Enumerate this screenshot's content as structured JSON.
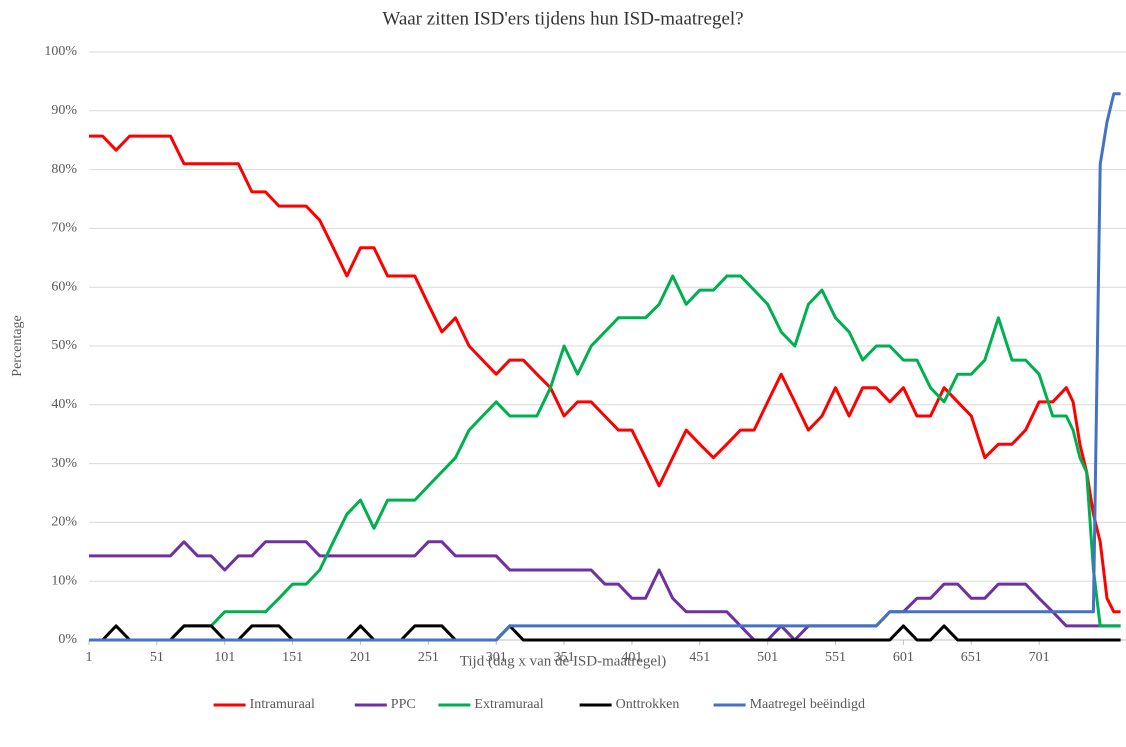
{
  "chart_data": {
    "type": "line",
    "title": "Waar zitten ISD'ers tijdens hun ISD-maatregel?",
    "xlabel": "Tijd (dag x van de ISD-maatregel)",
    "ylabel": "Percentage",
    "x": [
      1,
      11,
      21,
      31,
      41,
      51,
      61,
      71,
      81,
      91,
      101,
      111,
      121,
      131,
      141,
      151,
      161,
      171,
      181,
      191,
      201,
      211,
      221,
      231,
      241,
      251,
      261,
      271,
      281,
      291,
      301,
      311,
      321,
      331,
      341,
      351,
      361,
      371,
      381,
      391,
      401,
      411,
      421,
      431,
      441,
      451,
      461,
      471,
      481,
      491,
      501,
      511,
      521,
      531,
      541,
      551,
      561,
      571,
      581,
      591,
      601,
      611,
      621,
      631,
      641,
      651,
      661,
      671,
      681,
      691,
      701,
      711,
      721,
      726,
      731,
      736,
      741,
      746,
      751,
      756,
      761
    ],
    "series": [
      {
        "name": "Intramuraal",
        "color": "#ff0000",
        "values": [
          85.7,
          85.7,
          83.3,
          85.7,
          85.7,
          85.7,
          85.7,
          81,
          81,
          81,
          81,
          81,
          76.2,
          76.2,
          73.8,
          73.8,
          73.8,
          71.4,
          66.7,
          61.9,
          66.7,
          66.7,
          61.9,
          61.9,
          61.9,
          57.1,
          52.4,
          54.8,
          50,
          47.6,
          45.2,
          47.6,
          47.6,
          45.2,
          42.9,
          38.1,
          40.5,
          40.5,
          38.1,
          35.7,
          35.7,
          31,
          26.2,
          31,
          35.7,
          33.3,
          31,
          33.3,
          35.7,
          35.7,
          40.5,
          45.2,
          40.5,
          35.7,
          38.1,
          42.9,
          38.1,
          42.9,
          42.9,
          40.5,
          42.9,
          38.1,
          38.1,
          42.9,
          40.5,
          38.1,
          31,
          33.3,
          33.3,
          35.7,
          40.5,
          40.5,
          42.9,
          40.5,
          33.3,
          28.6,
          21.4,
          16.7,
          7.1,
          4.8,
          4.8
        ]
      },
      {
        "name": "PPC",
        "color": "#7030a0",
        "values": [
          14.3,
          14.3,
          14.3,
          14.3,
          14.3,
          14.3,
          14.3,
          16.7,
          14.3,
          14.3,
          11.9,
          14.3,
          14.3,
          16.7,
          16.7,
          16.7,
          16.7,
          14.3,
          14.3,
          14.3,
          14.3,
          14.3,
          14.3,
          14.3,
          14.3,
          16.7,
          16.7,
          14.3,
          14.3,
          14.3,
          14.3,
          11.9,
          11.9,
          11.9,
          11.9,
          11.9,
          11.9,
          11.9,
          9.5,
          9.5,
          7.1,
          7.1,
          11.9,
          7.1,
          4.8,
          4.8,
          4.8,
          4.8,
          2.4,
          0,
          0,
          2.4,
          0,
          2.4,
          2.4,
          2.4,
          2.4,
          2.4,
          2.4,
          4.8,
          4.8,
          7.1,
          7.1,
          9.5,
          9.5,
          7.1,
          7.1,
          9.5,
          9.5,
          9.5,
          7.1,
          4.8,
          2.4,
          2.4,
          2.4,
          2.4,
          2.4,
          2.4,
          2.4,
          2.4,
          2.4
        ]
      },
      {
        "name": "Extramuraal",
        "color": "#00b050",
        "values": [
          0,
          0,
          0,
          0,
          0,
          0,
          0,
          2.4,
          2.4,
          2.4,
          4.8,
          4.8,
          4.8,
          4.8,
          7.1,
          9.5,
          9.5,
          11.9,
          16.7,
          21.4,
          23.8,
          19,
          23.8,
          23.8,
          23.8,
          26.2,
          28.6,
          31,
          35.7,
          38.1,
          40.5,
          38.1,
          38.1,
          38.1,
          42.9,
          50,
          45.2,
          50,
          52.4,
          54.8,
          54.8,
          54.8,
          57.1,
          61.9,
          57.1,
          59.5,
          59.5,
          61.9,
          61.9,
          59.5,
          57.1,
          52.4,
          50,
          57.1,
          59.5,
          54.8,
          52.4,
          47.6,
          50,
          50,
          47.6,
          47.6,
          42.9,
          40.5,
          45.2,
          45.2,
          47.6,
          54.8,
          47.6,
          47.6,
          45.2,
          38.1,
          38.1,
          35.7,
          31,
          28.6,
          12,
          2.4,
          2.4,
          2.4,
          2.4
        ]
      },
      {
        "name": "Onttrokken",
        "color": "#000000",
        "values": [
          0,
          0,
          2.4,
          0,
          0,
          0,
          0,
          2.4,
          2.4,
          2.4,
          0,
          0,
          2.4,
          2.4,
          2.4,
          0,
          0,
          0,
          0,
          0,
          2.4,
          0,
          0,
          0,
          2.4,
          2.4,
          2.4,
          0,
          0,
          0,
          0,
          2.4,
          0,
          0,
          0,
          0,
          0,
          0,
          0,
          0,
          0,
          0,
          0,
          0,
          0,
          0,
          0,
          0,
          0,
          0,
          0,
          0,
          0,
          0,
          0,
          0,
          0,
          0,
          0,
          0,
          2.4,
          0,
          0,
          2.4,
          0,
          0,
          0,
          0,
          0,
          0,
          0,
          0,
          0,
          0,
          0,
          0,
          0,
          0,
          0,
          0,
          0
        ]
      },
      {
        "name": "Maatregel beëindigd",
        "color": "#4472c4",
        "values": [
          0,
          0,
          0,
          0,
          0,
          0,
          0,
          0,
          0,
          0,
          0,
          0,
          0,
          0,
          0,
          0,
          0,
          0,
          0,
          0,
          0,
          0,
          0,
          0,
          0,
          0,
          0,
          0,
          0,
          0,
          0,
          2.4,
          2.4,
          2.4,
          2.4,
          2.4,
          2.4,
          2.4,
          2.4,
          2.4,
          2.4,
          2.4,
          2.4,
          2.4,
          2.4,
          2.4,
          2.4,
          2.4,
          2.4,
          2.4,
          2.4,
          2.4,
          2.4,
          2.4,
          2.4,
          2.4,
          2.4,
          2.4,
          2.4,
          4.8,
          4.8,
          4.8,
          4.8,
          4.8,
          4.8,
          4.8,
          4.8,
          4.8,
          4.8,
          4.8,
          4.8,
          4.8,
          4.8,
          4.8,
          4.8,
          4.8,
          4.8,
          80.9,
          88.1,
          92.9,
          92.9
        ]
      }
    ],
    "xlim": [
      1,
      765
    ],
    "xticks": [
      1,
      51,
      101,
      151,
      201,
      251,
      301,
      351,
      401,
      451,
      501,
      551,
      601,
      651,
      701
    ],
    "ylim": [
      0,
      100
    ],
    "yticks": [
      {
        "value": 0,
        "label": "0%"
      },
      {
        "value": 10,
        "label": "10%"
      },
      {
        "value": 20,
        "label": "20%"
      },
      {
        "value": 30,
        "label": "30%"
      },
      {
        "value": 40,
        "label": "40%"
      },
      {
        "value": 50,
        "label": "50%"
      },
      {
        "value": 60,
        "label": "60%"
      },
      {
        "value": 70,
        "label": "70%"
      },
      {
        "value": 80,
        "label": "80%"
      },
      {
        "value": 90,
        "label": "90%"
      },
      {
        "value": 100,
        "label": "100%"
      }
    ],
    "grid": true,
    "legend": "bottom"
  }
}
